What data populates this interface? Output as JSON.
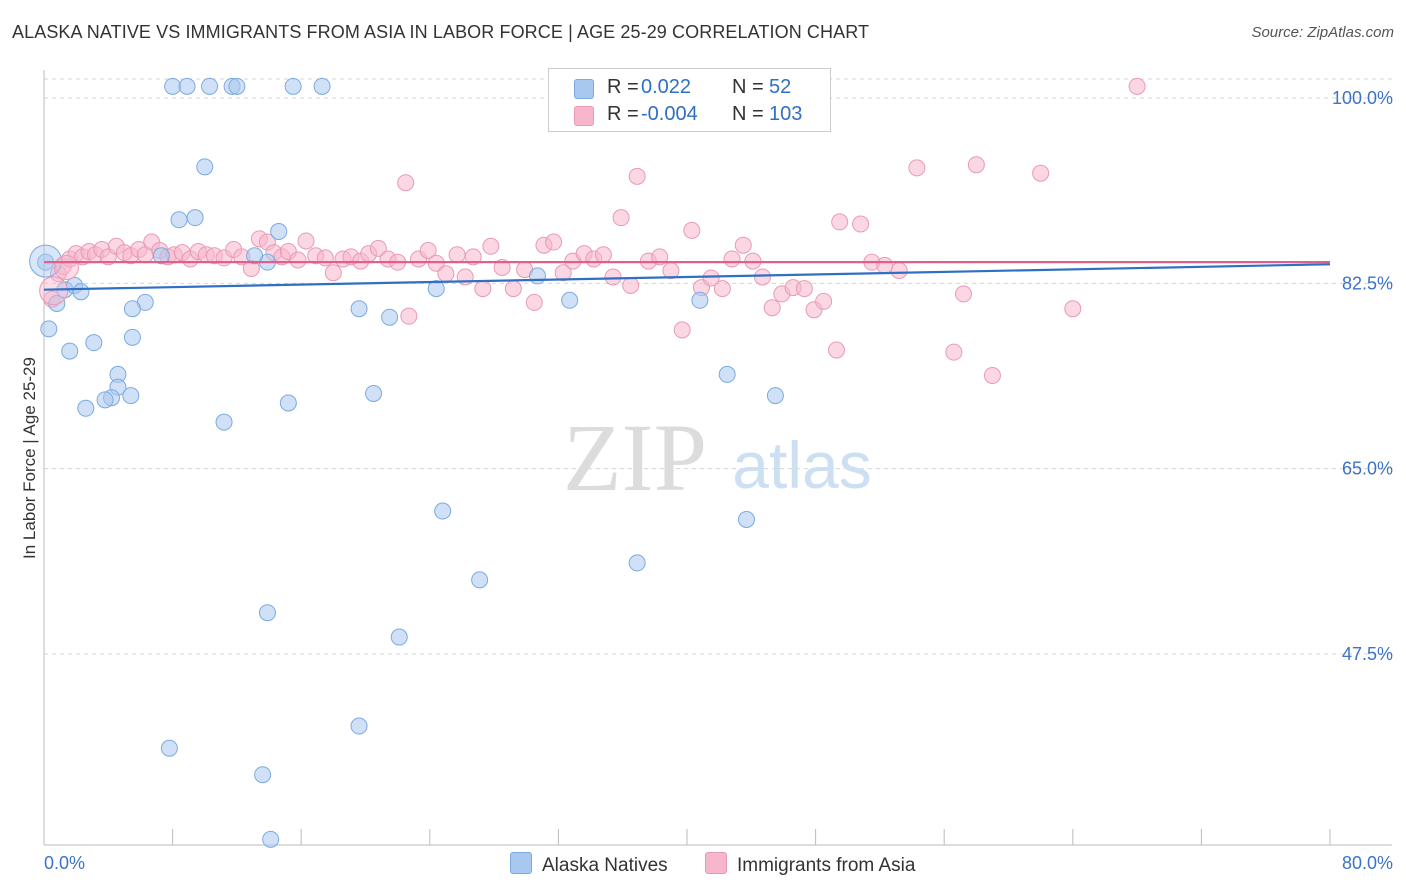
{
  "title": "ALASKA NATIVE VS IMMIGRANTS FROM ASIA IN LABOR FORCE | AGE 25-29 CORRELATION CHART",
  "source": "Source: ZipAtlas.com",
  "watermark": {
    "zip": "ZIP",
    "atlas": "atlas"
  },
  "legend_top": [
    {
      "r_label": "R =",
      "r_value": "0.022",
      "n_label": "N =",
      "n_value": "52",
      "color": "#a9c8f0"
    },
    {
      "r_label": "R =",
      "r_value": "-0.004",
      "n_label": "N =",
      "n_value": "103",
      "color": "#f7b6cc"
    }
  ],
  "legend_bottom": [
    {
      "label": "Alaska Natives",
      "color": "#a9c8f0"
    },
    {
      "label": "Immigrants from Asia",
      "color": "#f7b6cc"
    }
  ],
  "chart_data": {
    "type": "scatter",
    "title": "ALASKA NATIVE VS IMMIGRANTS FROM ASIA IN LABOR FORCE | AGE 25-29 CORRELATION CHART",
    "xlabel": "",
    "ylabel": "In Labor Force | Age 25-29",
    "xlim": [
      0,
      80
    ],
    "ylim": [
      33,
      104
    ],
    "x_tick_labels": [
      "0.0%",
      "80.0%"
    ],
    "y_ticks": [
      47.5,
      65.0,
      82.5,
      100.0
    ],
    "y_tick_labels": [
      "47.5%",
      "65.0%",
      "82.5%",
      "100.0%"
    ],
    "grid": true,
    "legend_position": "top-center",
    "series": [
      {
        "name": "Alaska Natives",
        "color": "#a9c8f0",
        "stroke": "#7aaae0",
        "trend_color": "#2f6fc4",
        "trend": {
          "x": [
            0,
            80
          ],
          "y": [
            81.9,
            84.3
          ]
        },
        "points": [
          [
            0.1,
            84.5
          ],
          [
            0.3,
            78.2
          ],
          [
            0.8,
            80.6
          ],
          [
            1.3,
            81.9
          ],
          [
            1.9,
            82.3
          ],
          [
            2.3,
            81.7
          ],
          [
            1.6,
            76.1
          ],
          [
            3.1,
            76.9
          ],
          [
            4.6,
            73.9
          ],
          [
            4.6,
            72.7
          ],
          [
            2.6,
            70.7
          ],
          [
            6.3,
            80.7
          ],
          [
            5.5,
            80.1
          ],
          [
            5.5,
            77.4
          ],
          [
            4.2,
            71.7
          ],
          [
            3.8,
            71.5
          ],
          [
            5.4,
            71.9
          ],
          [
            7.3,
            85.1
          ],
          [
            13.9,
            84.5
          ],
          [
            13.1,
            85.1
          ],
          [
            14.6,
            87.4
          ],
          [
            10.0,
            93.5
          ],
          [
            19.6,
            80.1
          ],
          [
            21.5,
            79.3
          ],
          [
            24.4,
            82.0
          ],
          [
            30.7,
            83.2
          ],
          [
            32.7,
            80.9
          ],
          [
            40.8,
            80.9
          ],
          [
            42.5,
            73.9
          ],
          [
            45.5,
            71.9
          ],
          [
            8.4,
            88.5
          ],
          [
            9.4,
            88.7
          ],
          [
            11.2,
            69.4
          ],
          [
            15.2,
            71.2
          ],
          [
            20.5,
            72.1
          ],
          [
            24.8,
            61.0
          ],
          [
            27.1,
            54.5
          ],
          [
            36.9,
            56.1
          ],
          [
            43.7,
            60.2
          ],
          [
            13.9,
            51.4
          ],
          [
            22.1,
            49.1
          ],
          [
            7.8,
            38.6
          ],
          [
            19.6,
            40.7
          ],
          [
            13.6,
            36.1
          ],
          [
            14.1,
            30.0
          ],
          [
            8.0,
            101.1
          ],
          [
            8.9,
            101.1
          ],
          [
            10.3,
            101.1
          ],
          [
            11.7,
            101.1
          ],
          [
            12.0,
            101.1
          ],
          [
            15.5,
            101.1
          ],
          [
            17.3,
            101.1
          ]
        ]
      },
      {
        "name": "Immigrants from Asia",
        "color": "#f7b6cc",
        "stroke": "#e89ab5",
        "trend_color": "#e0608a",
        "trend": {
          "x": [
            0,
            80
          ],
          "y": [
            84.5,
            84.5
          ]
        },
        "points": [
          [
            0.5,
            81.0
          ],
          [
            0.9,
            83.4
          ],
          [
            1.2,
            84.1
          ],
          [
            1.6,
            84.8
          ],
          [
            2.0,
            85.3
          ],
          [
            2.4,
            85.0
          ],
          [
            2.8,
            85.5
          ],
          [
            3.2,
            85.2
          ],
          [
            3.6,
            85.7
          ],
          [
            4.0,
            85.0
          ],
          [
            4.5,
            86.0
          ],
          [
            5.0,
            85.4
          ],
          [
            5.4,
            85.1
          ],
          [
            5.9,
            85.7
          ],
          [
            6.3,
            85.2
          ],
          [
            6.7,
            86.4
          ],
          [
            7.2,
            85.6
          ],
          [
            7.7,
            85.0
          ],
          [
            8.1,
            85.2
          ],
          [
            8.6,
            85.4
          ],
          [
            9.1,
            84.8
          ],
          [
            9.6,
            85.5
          ],
          [
            10.1,
            85.2
          ],
          [
            10.6,
            85.1
          ],
          [
            11.2,
            84.9
          ],
          [
            11.8,
            85.7
          ],
          [
            12.3,
            85.0
          ],
          [
            12.9,
            83.9
          ],
          [
            13.4,
            86.7
          ],
          [
            13.9,
            86.4
          ],
          [
            14.3,
            85.4
          ],
          [
            14.8,
            85.0
          ],
          [
            15.2,
            85.5
          ],
          [
            15.8,
            84.7
          ],
          [
            16.3,
            86.5
          ],
          [
            16.9,
            85.1
          ],
          [
            17.5,
            84.9
          ],
          [
            18.0,
            83.5
          ],
          [
            18.6,
            84.8
          ],
          [
            19.1,
            85.0
          ],
          [
            19.7,
            84.6
          ],
          [
            20.2,
            85.3
          ],
          [
            20.8,
            85.8
          ],
          [
            21.4,
            84.8
          ],
          [
            22.0,
            84.5
          ],
          [
            22.7,
            79.4
          ],
          [
            22.5,
            92.0
          ],
          [
            23.3,
            84.8
          ],
          [
            23.9,
            85.6
          ],
          [
            24.4,
            84.4
          ],
          [
            25.0,
            83.4
          ],
          [
            25.7,
            85.2
          ],
          [
            26.2,
            83.1
          ],
          [
            26.7,
            85.0
          ],
          [
            27.3,
            82.0
          ],
          [
            27.8,
            86.0
          ],
          [
            28.5,
            84.0
          ],
          [
            29.2,
            82.0
          ],
          [
            29.9,
            83.8
          ],
          [
            30.5,
            80.7
          ],
          [
            31.1,
            86.1
          ],
          [
            31.7,
            86.4
          ],
          [
            32.3,
            83.5
          ],
          [
            32.9,
            84.6
          ],
          [
            33.6,
            85.3
          ],
          [
            34.2,
            84.8
          ],
          [
            34.8,
            85.2
          ],
          [
            35.4,
            83.1
          ],
          [
            35.9,
            88.7
          ],
          [
            36.5,
            82.3
          ],
          [
            36.9,
            92.6
          ],
          [
            37.6,
            84.6
          ],
          [
            38.3,
            85.0
          ],
          [
            39.0,
            83.7
          ],
          [
            39.7,
            78.1
          ],
          [
            40.3,
            87.5
          ],
          [
            40.9,
            82.1
          ],
          [
            41.5,
            83.0
          ],
          [
            42.2,
            82.0
          ],
          [
            42.8,
            84.8
          ],
          [
            43.5,
            86.1
          ],
          [
            44.1,
            84.6
          ],
          [
            44.7,
            83.1
          ],
          [
            45.3,
            80.2
          ],
          [
            45.9,
            81.5
          ],
          [
            46.6,
            82.1
          ],
          [
            47.3,
            82.0
          ],
          [
            47.9,
            80.0
          ],
          [
            48.5,
            80.8
          ],
          [
            49.3,
            76.2
          ],
          [
            50.8,
            88.1
          ],
          [
            49.5,
            88.3
          ],
          [
            51.5,
            84.5
          ],
          [
            52.3,
            84.2
          ],
          [
            53.2,
            83.7
          ],
          [
            54.3,
            93.4
          ],
          [
            56.6,
            76.0
          ],
          [
            57.2,
            81.5
          ],
          [
            58.0,
            93.7
          ],
          [
            59.0,
            73.8
          ],
          [
            62.0,
            92.9
          ],
          [
            64.0,
            80.1
          ],
          [
            68.0,
            101.1
          ]
        ]
      }
    ]
  }
}
